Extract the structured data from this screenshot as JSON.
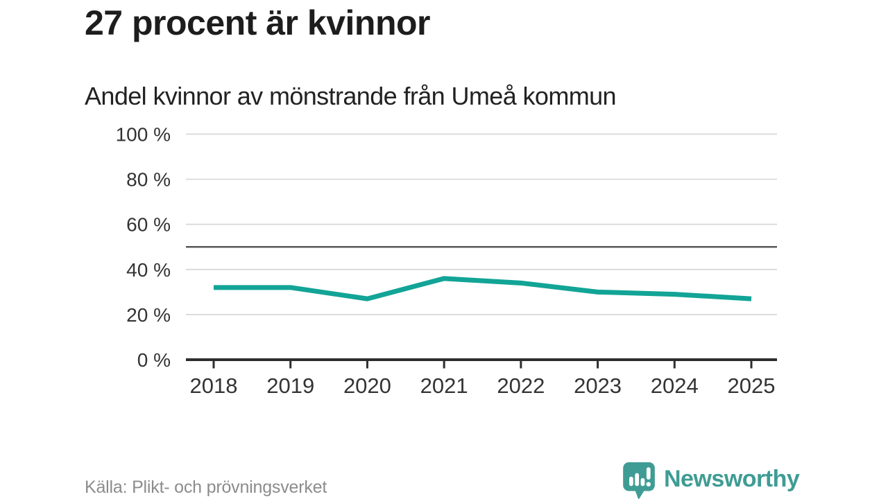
{
  "title": "27 procent är kvinnor",
  "subtitle": "Andel kvinnor av mönstrande från Umeå kommun",
  "source": "Källa: Plikt- och prövningsverket",
  "logo": {
    "text": "Newsworthy",
    "icon": "chart-bars-speech-bubble"
  },
  "colors": {
    "line": "#12a496",
    "grid": "#d9d9d9",
    "reference": "#55585a",
    "axis": "#2e2e2e",
    "tick_text": "#333333",
    "title_text": "#1d1d1d",
    "source_text": "#8c8c8c",
    "logo": "#3f9c94",
    "background": "#ffffff"
  },
  "chart_data": {
    "type": "line",
    "title": "27 procent är kvinnor",
    "subtitle": "Andel kvinnor av mönstrande från Umeå kommun",
    "x": [
      2018,
      2019,
      2020,
      2021,
      2022,
      2023,
      2024,
      2025
    ],
    "series": [
      {
        "name": "Andel kvinnor av mönstrande",
        "values": [
          32,
          32,
          27,
          36,
          34,
          30,
          29,
          27
        ]
      }
    ],
    "ylim": [
      0,
      100
    ],
    "yticks": [
      0,
      20,
      40,
      60,
      80,
      100
    ],
    "ytick_format": "{v} %",
    "reference_line": 50,
    "grid": "horizontal",
    "legend": "none",
    "source": "Källa: Plikt- och prövningsverket"
  }
}
